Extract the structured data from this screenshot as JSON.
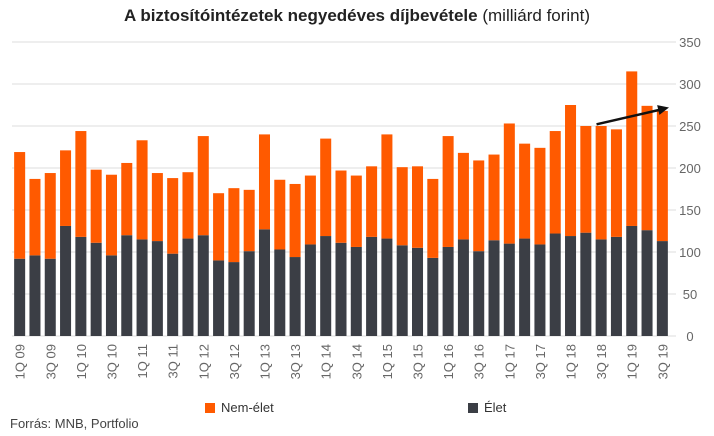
{
  "title": {
    "bold": "A biztosítóintézetek negyedéves díjbevétele",
    "normal": "(milliárd forint)"
  },
  "source": "Forrás: MNB, Portfolio",
  "colors": {
    "nem_elet": "#ff5a00",
    "elet": "#3b3e45",
    "grid": "#dddddd",
    "axis_text": "#666666",
    "arrow": "#111111"
  },
  "chart_data": {
    "type": "bar",
    "stacked": true,
    "categories": [
      "1Q 09",
      "2Q 09",
      "3Q 09",
      "4Q 09",
      "1Q 10",
      "2Q 10",
      "3Q 10",
      "4Q 10",
      "1Q 11",
      "2Q 11",
      "3Q 11",
      "4Q 11",
      "1Q 12",
      "2Q 12",
      "3Q 12",
      "4Q 12",
      "1Q 13",
      "2Q 13",
      "3Q 13",
      "4Q 13",
      "1Q 14",
      "2Q 14",
      "3Q 14",
      "4Q 14",
      "1Q 15",
      "2Q 15",
      "3Q 15",
      "4Q 15",
      "1Q 16",
      "2Q 16",
      "3Q 16",
      "4Q 16",
      "1Q 17",
      "2Q 17",
      "3Q 17",
      "4Q 17",
      "1Q 18",
      "2Q 18",
      "3Q 18",
      "4Q 18",
      "1Q 19",
      "2Q 19",
      "3Q 19"
    ],
    "x_tick_labels": [
      "1Q 09",
      "",
      "3Q 09",
      "",
      "1Q 10",
      "",
      "3Q 10",
      "",
      "1Q 11",
      "",
      "3Q 11",
      "",
      "1Q 12",
      "",
      "3Q 12",
      "",
      "1Q 13",
      "",
      "3Q 13",
      "",
      "1Q 14",
      "",
      "3Q 14",
      "",
      "1Q 15",
      "",
      "3Q 15",
      "",
      "1Q 16",
      "",
      "3Q 16",
      "",
      "1Q 17",
      "",
      "3Q 17",
      "",
      "1Q 18",
      "",
      "3Q 18",
      "",
      "1Q 19",
      "",
      "3Q 19"
    ],
    "series": [
      {
        "name": "Élet",
        "values": [
          92,
          96,
          92,
          131,
          118,
          111,
          96,
          120,
          115,
          113,
          98,
          116,
          120,
          90,
          88,
          101,
          127,
          103,
          94,
          109,
          119,
          111,
          106,
          118,
          116,
          108,
          105,
          93,
          106,
          115,
          101,
          114,
          110,
          116,
          109,
          122,
          119,
          123,
          115,
          118,
          131,
          126,
          113
        ]
      },
      {
        "name": "Nem-élet",
        "values": [
          127,
          91,
          102,
          90,
          126,
          87,
          96,
          86,
          118,
          81,
          90,
          79,
          118,
          80,
          88,
          73,
          113,
          83,
          87,
          82,
          116,
          86,
          85,
          84,
          124,
          93,
          97,
          94,
          132,
          103,
          108,
          102,
          143,
          113,
          115,
          122,
          156,
          127,
          135,
          128,
          184,
          148,
          155
        ]
      }
    ],
    "ylim": [
      0,
      350
    ],
    "yticks": [
      0,
      50,
      100,
      150,
      200,
      250,
      300,
      350
    ],
    "y_axis_side": "right",
    "grid": true,
    "legend": [
      "Nem-élet",
      "Élet"
    ],
    "legend_position": "bottom",
    "annotation": "trend arrow from 3Q 18 to the right edge, pointing up"
  }
}
